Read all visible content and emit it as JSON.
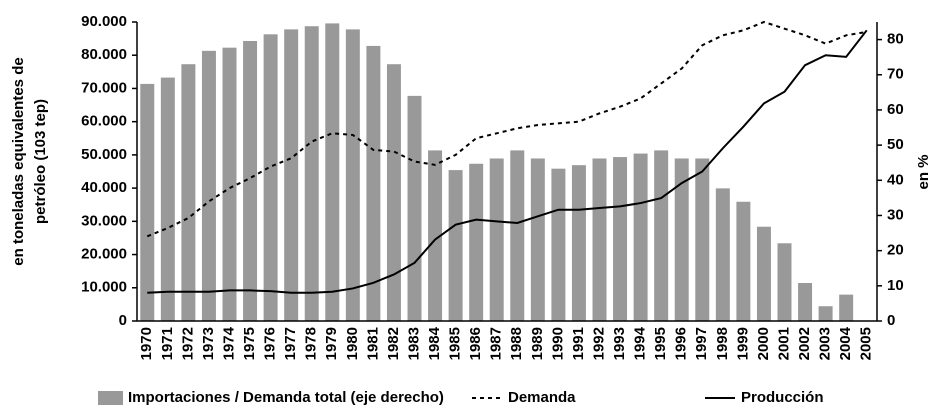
{
  "chart_data": {
    "type": "bar",
    "y_label": [
      "en toneladas equivalentes de",
      "petróleo (103 tep)"
    ],
    "y2_label": "en %",
    "categories": [
      "1970",
      "1971",
      "1972",
      "1973",
      "1974",
      "1975",
      "1976",
      "1977",
      "1978",
      "1979",
      "1980",
      "1981",
      "1982",
      "1983",
      "1984",
      "1985",
      "1986",
      "1987",
      "1988",
      "1989",
      "1990",
      "1991",
      "1992",
      "1993",
      "1994",
      "1995",
      "1996",
      "1997",
      "1998",
      "1999",
      "2000",
      "2001",
      "2002",
      "2003",
      "2004",
      "2005"
    ],
    "series": [
      {
        "name": "Importaciones / Demanda total (eje derecho)",
        "type": "bar",
        "axis": "y2",
        "color": "#999999",
        "values": [
          67.4,
          69.2,
          73,
          76.8,
          77.7,
          79.6,
          81.5,
          82.9,
          83.8,
          84.6,
          82.9,
          78.2,
          73,
          64,
          48.5,
          42.9,
          44.7,
          46.2,
          48.5,
          46.2,
          43.3,
          44.3,
          46.2,
          46.6,
          47.6,
          48.5,
          46.2,
          46.2,
          37.7,
          33.9,
          26.8,
          22.1,
          10.8,
          4.2,
          7.5,
          null
        ]
      },
      {
        "name": "Demanda",
        "type": "line",
        "dash": true,
        "color": "#000000",
        "values": [
          25500,
          28000,
          31000,
          36000,
          40000,
          43000,
          46500,
          49000,
          54000,
          56500,
          56000,
          51500,
          51000,
          48000,
          47000,
          50000,
          55000,
          56500,
          58000,
          59000,
          59500,
          60000,
          62500,
          64500,
          67000,
          71500,
          76000,
          83000,
          86000,
          87500,
          90000,
          88000,
          86000,
          83500,
          86000,
          87000
        ]
      },
      {
        "name": "Producción",
        "type": "line",
        "dash": false,
        "color": "#000000",
        "values": [
          8500,
          8800,
          8800,
          8800,
          9200,
          9200,
          9000,
          8500,
          8500,
          8800,
          9800,
          11500,
          14000,
          17500,
          24500,
          29000,
          30500,
          30000,
          29500,
          31500,
          33500,
          33500,
          34000,
          34500,
          35500,
          37000,
          41500,
          45000,
          52000,
          58500,
          65500,
          69000,
          77000,
          80000,
          79500,
          87500
        ]
      }
    ],
    "ylim": [
      0,
      90000
    ],
    "yticks": [
      {
        "value": 0,
        "label": "0"
      },
      {
        "value": 10000,
        "label": "10.000"
      },
      {
        "value": 20000,
        "label": "20.000"
      },
      {
        "value": 30000,
        "label": "30.000"
      },
      {
        "value": 40000,
        "label": "40.000"
      },
      {
        "value": 50000,
        "label": "50.000"
      },
      {
        "value": 60000,
        "label": "60.000"
      },
      {
        "value": 70000,
        "label": "70.000"
      },
      {
        "value": 80000,
        "label": "80.000"
      },
      {
        "value": 90000,
        "label": "90.000"
      }
    ],
    "y2lim": [
      0,
      85
    ],
    "y2ticks": [
      0,
      10,
      20,
      30,
      40,
      50,
      60,
      70,
      80
    ]
  }
}
